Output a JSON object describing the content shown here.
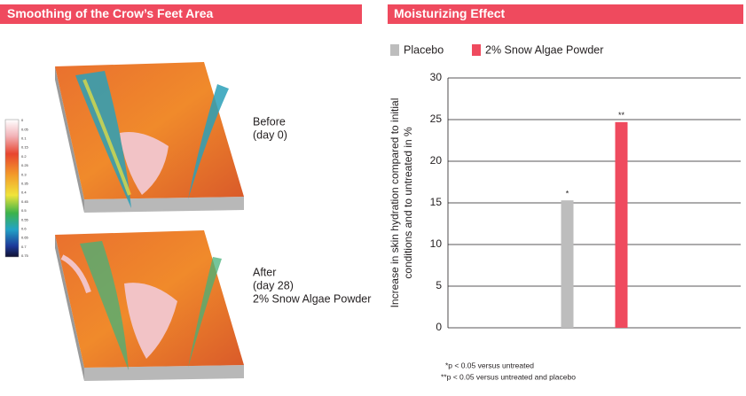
{
  "left_panel": {
    "title": "Smoothing of the Crow’s Feet Area",
    "before_label": [
      "Before",
      "(day 0)"
    ],
    "after_label": [
      "After",
      "(day 28)",
      "2% Snow Algae Powder"
    ],
    "colorbar_labels": [
      "0",
      "0.05",
      "0.1",
      "0.15",
      "0.2",
      "0.25",
      "0.3",
      "0.35",
      "0.4",
      "0.45",
      "0.5",
      "0.55",
      "0.6",
      "0.65",
      "0.7",
      "0.75"
    ]
  },
  "chart_data": {
    "type": "bar",
    "title": "Moisturizing Effect",
    "ylabel": [
      "Increase in skin hydration compared to initial",
      "conditions and to untreated in %"
    ],
    "categories": [
      null
    ],
    "series": [
      {
        "name": "Placebo",
        "color": "#bdbdbd",
        "values": [
          15.3
        ],
        "value_labels": [
          "*"
        ]
      },
      {
        "name": "2% Snow Algae Powder",
        "color": "#ef4a5e",
        "values": [
          24.7
        ],
        "value_labels": [
          "**"
        ]
      }
    ],
    "ylim": [
      0,
      30
    ],
    "yticks": [
      0,
      5,
      10,
      15,
      20,
      25,
      30
    ],
    "grid": true,
    "footnotes": [
      "*p < 0.05 versus untreated",
      "**p < 0.05 versus untreated and placebo"
    ]
  }
}
